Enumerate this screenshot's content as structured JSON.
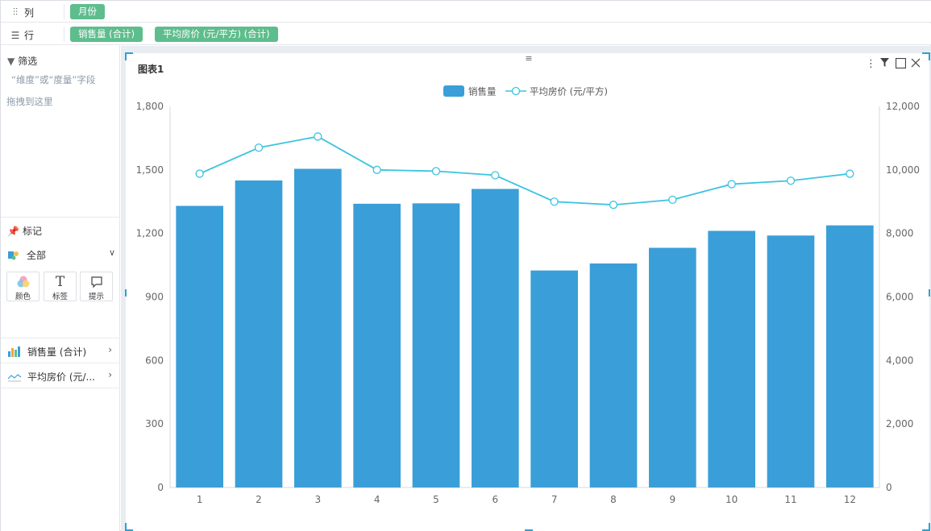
{
  "shelves": {
    "columns": {
      "label": "列",
      "pills": [
        "月份"
      ]
    },
    "rows": {
      "label": "行",
      "pills": [
        "销售量 (合计)",
        "平均房价 (元/平方) (合计)"
      ]
    }
  },
  "filter": {
    "title": "筛选",
    "hint_line1": "“维度”或“度量”字段",
    "hint_line2": "拖拽到这里"
  },
  "marks": {
    "title": "标记",
    "selector_label": "全部",
    "buttons": [
      {
        "label": "颜色",
        "icon": "color-icon"
      },
      {
        "label": "标签",
        "icon": "text-icon"
      },
      {
        "label": "提示",
        "icon": "tooltip-icon"
      }
    ],
    "fields": [
      {
        "label": "销售量 (合计)",
        "icon": "bar-chart-icon"
      },
      {
        "label": "平均房价 (元/...",
        "icon": "line-chart-icon"
      }
    ]
  },
  "card": {
    "title": "图表1"
  },
  "colors": {
    "bar": "#3a9fd8",
    "line": "#3cc3e0",
    "pill": "#5ebd8d",
    "handle": "#2ba0d8"
  },
  "chart_data": {
    "type": "bar",
    "title": "",
    "xlabel": "",
    "ylabel": "",
    "categories": [
      "1",
      "2",
      "3",
      "4",
      "5",
      "6",
      "7",
      "8",
      "9",
      "10",
      "11",
      "12"
    ],
    "series": [
      {
        "name": "销售量",
        "type": "bar",
        "axis": "left",
        "values": [
          1330,
          1450,
          1505,
          1340,
          1342,
          1410,
          1025,
          1058,
          1132,
          1212,
          1190,
          1238
        ]
      },
      {
        "name": "平均房价 (元/平方)",
        "type": "line",
        "axis": "right",
        "values": [
          9880,
          10700,
          11050,
          10000,
          9960,
          9830,
          9000,
          8900,
          9060,
          9550,
          9660,
          9880
        ]
      }
    ],
    "ylim_left": [
      0,
      1800
    ],
    "yticks_left": [
      "0",
      "300",
      "600",
      "900",
      "1,200",
      "1,500",
      "1,800"
    ],
    "ylim_right": [
      0,
      12000
    ],
    "yticks_right": [
      "0",
      "2,000",
      "4,000",
      "6,000",
      "8,000",
      "10,000",
      "12,000"
    ],
    "legend": "top-center",
    "grid": false
  }
}
